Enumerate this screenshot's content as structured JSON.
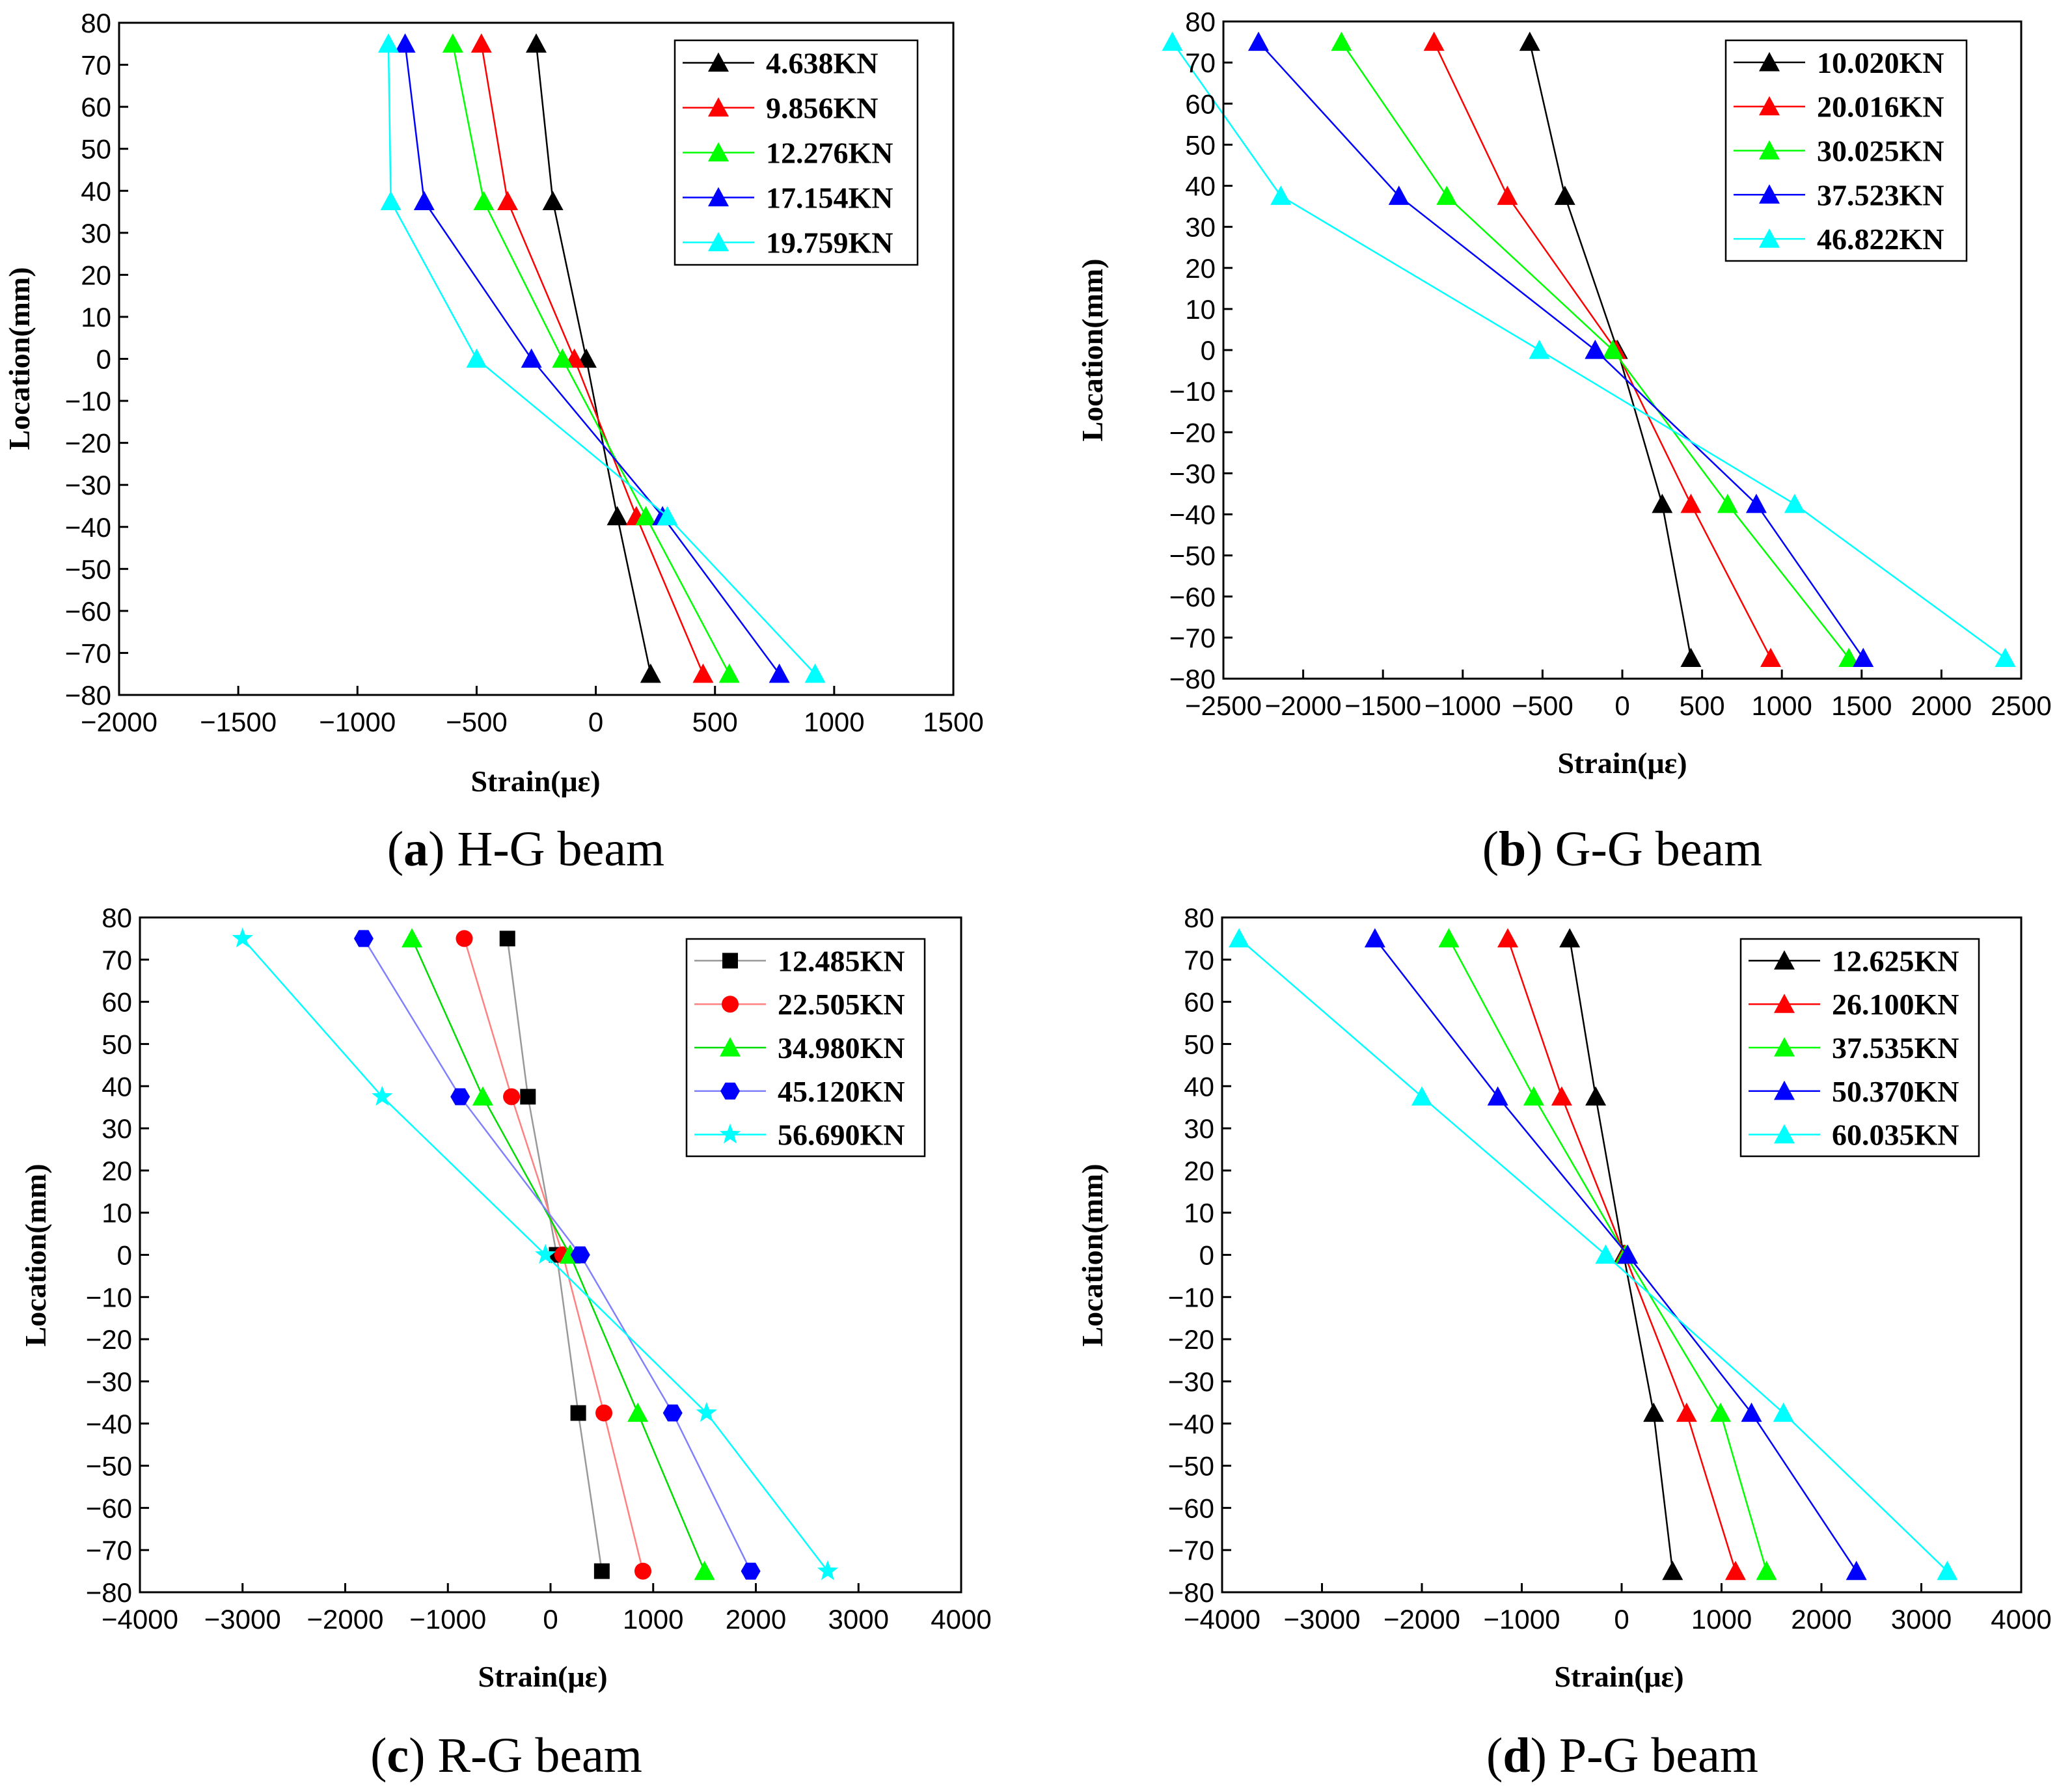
{
  "chart_data": [
    {
      "type": "line",
      "panel": "a",
      "caption_letter": "a",
      "caption_text": "H-G beam",
      "xlabel": "Strain(με)",
      "ylabel": "Location(mm)",
      "xlim": [
        -2000,
        1500
      ],
      "ylim": [
        -80,
        80
      ],
      "xticks": [
        -2000,
        -1500,
        -1000,
        -500,
        0,
        500,
        1000,
        1500
      ],
      "yticks": [
        80,
        70,
        60,
        50,
        40,
        30,
        20,
        10,
        0,
        -10,
        -20,
        -30,
        -40,
        -50,
        -60,
        -70,
        -80
      ],
      "x_tick_labels": [
        "−2000",
        "−1500",
        "−1000",
        "−500",
        "0",
        "500",
        "1000",
        "1500"
      ],
      "y_tick_labels": [
        "80",
        "70",
        "60",
        "50",
        "40",
        "30",
        "20",
        "10",
        "0",
        "−10",
        "−20",
        "−30",
        "−40",
        "−50",
        "−60",
        "−70",
        "−80"
      ],
      "legend_position": "top-right",
      "y": [
        75,
        37.5,
        0,
        -37.5,
        -75
      ],
      "series": [
        {
          "name": "4.638KN",
          "marker": "triangle",
          "color": "#000000",
          "x": [
            -250,
            -180,
            -40,
            90,
            230
          ]
        },
        {
          "name": "9.856KN",
          "marker": "triangle",
          "color": "#ff0000",
          "x": [
            -480,
            -370,
            -90,
            170,
            450
          ]
        },
        {
          "name": "12.276KN",
          "marker": "triangle",
          "color": "#00ff00",
          "x": [
            -600,
            -470,
            -140,
            210,
            560
          ]
        },
        {
          "name": "17.154KN",
          "marker": "triangle",
          "color": "#0000ff",
          "x": [
            -800,
            -720,
            -270,
            280,
            770
          ]
        },
        {
          "name": "19.759KN",
          "marker": "triangle",
          "color": "#00ffff",
          "x": [
            -870,
            -860,
            -500,
            300,
            920
          ]
        }
      ]
    },
    {
      "type": "line",
      "panel": "b",
      "caption_letter": "b",
      "caption_text": "G-G beam",
      "xlabel": "Strain(με)",
      "ylabel": "Location(mm)",
      "xlim": [
        -2500,
        2500
      ],
      "ylim": [
        -80,
        80
      ],
      "xticks": [
        -2500,
        -2000,
        -1500,
        -1000,
        -500,
        0,
        500,
        1000,
        1500,
        2000,
        2500
      ],
      "yticks": [
        80,
        70,
        60,
        50,
        40,
        30,
        20,
        10,
        0,
        -10,
        -20,
        -30,
        -40,
        -50,
        -60,
        -70,
        -80
      ],
      "x_tick_labels": [
        "−2500",
        "−2000",
        "−1500",
        "−1000",
        "−500",
        "0",
        "500",
        "1000",
        "1500",
        "2000",
        "2500"
      ],
      "y_tick_labels": [
        "80",
        "70",
        "60",
        "50",
        "40",
        "30",
        "20",
        "10",
        "0",
        "−10",
        "−20",
        "−30",
        "−40",
        "−50",
        "−60",
        "−70",
        "−80"
      ],
      "legend_position": "top-right",
      "y": [
        75,
        37.5,
        0,
        -37.5,
        -75
      ],
      "series": [
        {
          "name": "10.020KN",
          "marker": "triangle",
          "color": "#000000",
          "x": [
            -580,
            -360,
            -30,
            250,
            430
          ]
        },
        {
          "name": "20.016KN",
          "marker": "triangle",
          "color": "#ff0000",
          "x": [
            -1180,
            -720,
            -40,
            430,
            930
          ]
        },
        {
          "name": "30.025KN",
          "marker": "triangle",
          "color": "#00ff00",
          "x": [
            -1760,
            -1100,
            -60,
            660,
            1420
          ]
        },
        {
          "name": "37.523KN",
          "marker": "triangle",
          "color": "#0000ff",
          "x": [
            -2280,
            -1400,
            -170,
            840,
            1510
          ]
        },
        {
          "name": "46.822KN",
          "marker": "triangle",
          "color": "#00ffff",
          "x": [
            -2820,
            -2140,
            -520,
            1080,
            2400
          ]
        }
      ]
    },
    {
      "type": "line",
      "panel": "c",
      "caption_letter": "c",
      "caption_text": "R-G beam",
      "xlabel": "Strain(με)",
      "ylabel": "Location(mm)",
      "xlim": [
        -4000,
        4000
      ],
      "ylim": [
        -80,
        80
      ],
      "xticks": [
        -4000,
        -3000,
        -2000,
        -1000,
        0,
        1000,
        2000,
        3000,
        4000
      ],
      "yticks": [
        80,
        70,
        60,
        50,
        40,
        30,
        20,
        10,
        0,
        -10,
        -20,
        -30,
        -40,
        -50,
        -60,
        -70,
        -80
      ],
      "x_tick_labels": [
        "−4000",
        "−3000",
        "−2000",
        "−1000",
        "0",
        "1000",
        "2000",
        "3000",
        "4000"
      ],
      "y_tick_labels": [
        "80",
        "70",
        "60",
        "50",
        "40",
        "30",
        "20",
        "10",
        "0",
        "−10",
        "−20",
        "−30",
        "−40",
        "−50",
        "−60",
        "−70",
        "−80"
      ],
      "legend_position": "top-right",
      "y": [
        75,
        37.5,
        0,
        -37.5,
        -75
      ],
      "series": [
        {
          "name": "12.485KN",
          "marker": "square",
          "color": "#000000",
          "line_color": "#999999",
          "x": [
            -420,
            -220,
            60,
            270,
            500
          ]
        },
        {
          "name": "22.505KN",
          "marker": "circle",
          "color": "#ff0000",
          "line_color": "#ff8080",
          "x": [
            -840,
            -380,
            120,
            520,
            900
          ]
        },
        {
          "name": "34.980KN",
          "marker": "triangle",
          "color": "#00ff00",
          "line_color": "#00dd00",
          "x": [
            -1350,
            -660,
            190,
            850,
            1500
          ]
        },
        {
          "name": "45.120KN",
          "marker": "hexagon",
          "color": "#0000ff",
          "line_color": "#8080ff",
          "x": [
            -1820,
            -880,
            290,
            1190,
            1950
          ]
        },
        {
          "name": "56.690KN",
          "marker": "star",
          "color": "#00ffff",
          "line_color": "#00ffff",
          "x": [
            -3000,
            -1640,
            -50,
            1520,
            2700
          ]
        }
      ]
    },
    {
      "type": "line",
      "panel": "d",
      "caption_letter": "d",
      "caption_text": "P-G beam",
      "xlabel": "Strain(με)",
      "ylabel": "Location(mm)",
      "xlim": [
        -4000,
        4000
      ],
      "ylim": [
        -80,
        80
      ],
      "xticks": [
        -4000,
        -3000,
        -2000,
        -1000,
        0,
        1000,
        2000,
        3000,
        4000
      ],
      "yticks": [
        80,
        70,
        60,
        50,
        40,
        30,
        20,
        10,
        0,
        -10,
        -20,
        -30,
        -40,
        -50,
        -60,
        -70,
        -80
      ],
      "x_tick_labels": [
        "−4000",
        "−3000",
        "−2000",
        "−1000",
        "0",
        "1000",
        "2000",
        "3000",
        "4000"
      ],
      "y_tick_labels": [
        "80",
        "70",
        "60",
        "50",
        "40",
        "30",
        "20",
        "10",
        "0",
        "−10",
        "−20",
        "−30",
        "−40",
        "−50",
        "−60",
        "−70",
        "−80"
      ],
      "legend_position": "top-right",
      "y": [
        75,
        37.5,
        0,
        -37.5,
        -75
      ],
      "series": [
        {
          "name": "12.625KN",
          "marker": "triangle",
          "color": "#000000",
          "x": [
            -520,
            -260,
            20,
            320,
            510
          ]
        },
        {
          "name": "26.100KN",
          "marker": "triangle",
          "color": "#ff0000",
          "x": [
            -1140,
            -600,
            30,
            650,
            1140
          ]
        },
        {
          "name": "37.535KN",
          "marker": "triangle",
          "color": "#00ff00",
          "x": [
            -1730,
            -880,
            40,
            990,
            1450
          ]
        },
        {
          "name": "50.370KN",
          "marker": "triangle",
          "color": "#0000ff",
          "x": [
            -2470,
            -1240,
            60,
            1300,
            2350
          ]
        },
        {
          "name": "60.035KN",
          "marker": "triangle",
          "color": "#00ffff",
          "x": [
            -3830,
            -2000,
            -160,
            1620,
            3260
          ]
        }
      ]
    }
  ]
}
